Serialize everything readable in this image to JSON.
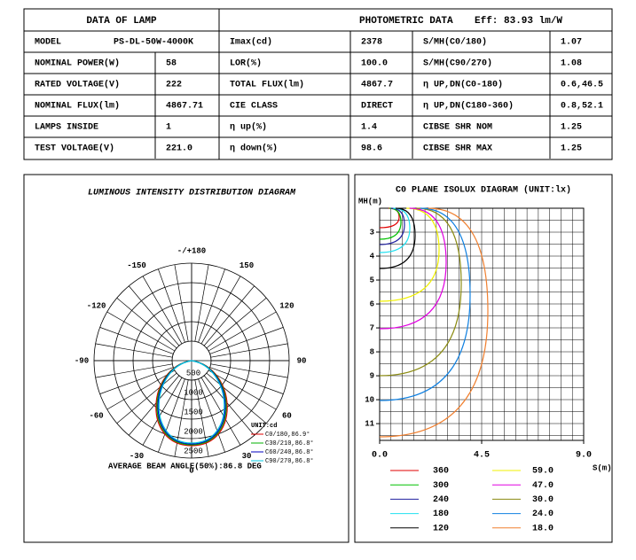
{
  "table": {
    "header": [
      "DATA OF LAMP",
      "PHOTOMETRIC DATA",
      "Eff: 83.93 lm/W"
    ],
    "rows": [
      [
        "MODEL",
        "PS-DL-50W-4000K",
        "Imax(cd)",
        "2378",
        "S/MH(C0/180)",
        "1.07"
      ],
      [
        "NOMINAL POWER(W)",
        "58",
        "LOR(%)",
        "100.0",
        "S/MH(C90/270)",
        "1.08"
      ],
      [
        "RATED VOLTAGE(V)",
        "222",
        "TOTAL FLUX(lm)",
        "4867.7",
        "η UP,DN(C0-180)",
        "0.6,46.5"
      ],
      [
        "NOMINAL FLUX(lm)",
        "4867.71",
        "CIE CLASS",
        "DIRECT",
        "η UP,DN(C180-360)",
        "0.8,52.1"
      ],
      [
        "LAMPS INSIDE",
        "1",
        "η up(%)",
        "1.4",
        "CIBSE SHR NOM",
        "1.25"
      ],
      [
        "TEST VOLTAGE(V)",
        "221.0",
        "η down(%)",
        "98.6",
        "CIBSE SHR MAX",
        "1.25"
      ]
    ]
  },
  "polar": {
    "title": "LUMINOUS INTENSITY DISTRIBUTION DIAGRAM",
    "angle_labels": [
      "-/+180",
      "150",
      "120",
      "90",
      "60",
      "30",
      "0",
      "-30",
      "-60",
      "-90",
      "-120",
      "-150"
    ],
    "rlim": [
      0,
      2500
    ],
    "rticks": [
      500,
      1000,
      1500,
      2000,
      2500
    ],
    "unit": "UNIT:cd",
    "series": [
      {
        "name": "C0/180,86.9°",
        "color": "#e00000"
      },
      {
        "name": "C30/210,86.8°",
        "color": "#00b000"
      },
      {
        "name": "C60/240,86.8°",
        "color": "#0000c0"
      },
      {
        "name": "C90/270,86.8°",
        "color": "#00c8e0"
      }
    ],
    "beam_angle": "AVERAGE BEAM ANGLE(50%):86.8 DEG"
  },
  "isolux": {
    "title": "C0 PLANE ISOLUX DIAGRAM (UNIT:lx)",
    "ylabel": "MH(m)",
    "xlabel": "S(m)",
    "xlim": [
      0,
      9
    ],
    "xticks": [
      {
        "value": 0,
        "label": "0.0"
      },
      {
        "value": 4.5,
        "label": "4.5"
      },
      {
        "value": 9,
        "label": "9.0"
      }
    ],
    "ylim": [
      2,
      11.7
    ],
    "yticks": [
      3,
      4,
      5,
      6,
      7,
      8,
      9,
      10,
      11
    ],
    "levels": [
      {
        "name": "360",
        "color": "#e00000"
      },
      {
        "name": "300",
        "color": "#00c000"
      },
      {
        "name": "240",
        "color": "#2020a0"
      },
      {
        "name": "180",
        "color": "#20e0f0"
      },
      {
        "name": "120",
        "color": "#000000"
      },
      {
        "name": "59.0",
        "color": "#f0f000"
      },
      {
        "name": "47.0",
        "color": "#e000e0"
      },
      {
        "name": "30.0",
        "color": "#8a8a10"
      },
      {
        "name": "24.0",
        "color": "#1080e0"
      },
      {
        "name": "18.0",
        "color": "#f08030"
      }
    ]
  }
}
